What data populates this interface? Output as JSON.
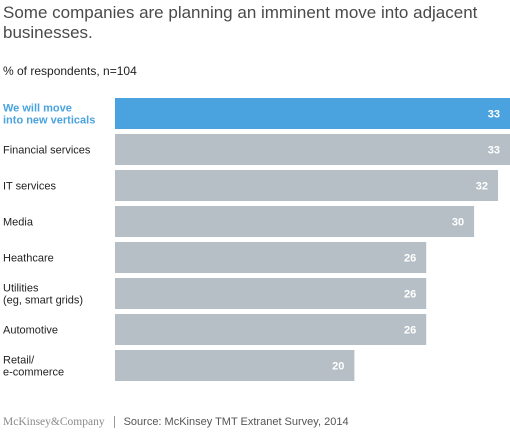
{
  "title": "Some companies are planning an imminent move into adjacent businesses.",
  "subtitle": "% of respondents, n=104",
  "footer": {
    "logo": "McKinsey&Company",
    "source": "Source: McKinsey TMT Extranet Survey, 2014"
  },
  "colors": {
    "highlight": "#4aa3df",
    "bar": "#b6bfc5",
    "highlight_label": "#4aa3df",
    "label": "#222222",
    "value_text": "#ffffff"
  },
  "chart_data": {
    "type": "bar",
    "orientation": "horizontal",
    "categories": [
      [
        "We will move",
        "into new verticals"
      ],
      [
        "Financial services"
      ],
      [
        "IT services"
      ],
      [
        "Media"
      ],
      [
        "Heathcare"
      ],
      [
        "Utilities",
        "(eg, smart grids)"
      ],
      [
        "Automotive"
      ],
      [
        "Retail/",
        "e-commerce"
      ]
    ],
    "values": [
      33,
      33,
      32,
      30,
      26,
      26,
      26,
      20
    ],
    "highlighted_index": 0,
    "xlim": [
      0,
      33
    ],
    "grid": false,
    "legend": "none"
  }
}
